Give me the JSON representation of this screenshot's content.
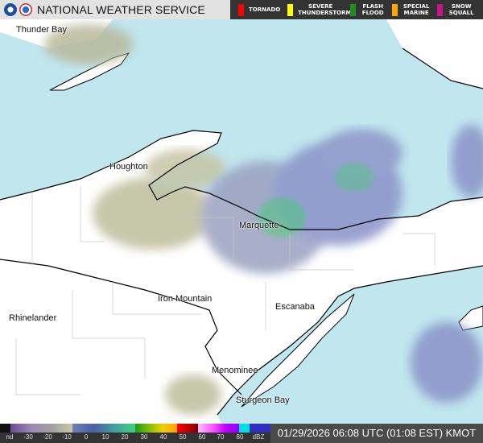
{
  "header": {
    "title": "NATIONAL WEATHER SERVICE",
    "warnings": [
      {
        "label": "TORNADO",
        "color": "#ff0000"
      },
      {
        "label": "SEVERE THUNDERSTORM",
        "color": "#ffff00"
      },
      {
        "label": "FLASH FLOOD",
        "color": "#228b22"
      },
      {
        "label": "SPECIAL MARINE",
        "color": "#ffa500"
      },
      {
        "label": "SNOW SQUALL",
        "color": "#c71585"
      }
    ]
  },
  "map": {
    "water_color": "#c0e6ee",
    "land_color": "#ffffff",
    "cities": [
      "Thunder Bay",
      "Houghton",
      "Marquette",
      "Iron Mountain",
      "Escanaba",
      "Rhinelander",
      "Menominee",
      "Sturgeon Bay"
    ]
  },
  "legend": {
    "labels": [
      "nd",
      "-30",
      "-20",
      "-10",
      "0",
      "10",
      "20",
      "30",
      "40",
      "50",
      "60",
      "70",
      "80",
      "dBZ"
    ]
  },
  "timestamp": "01/29/2026 06:08 UTC (01:08 EST) KMOT"
}
